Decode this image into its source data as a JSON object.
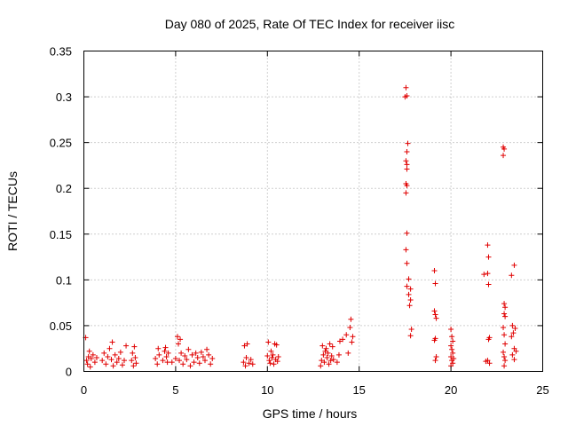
{
  "chart_data": {
    "type": "scatter",
    "title": "Day 080 of 2025, Rate Of TEC Index for receiver iisc",
    "xlabel": "GPS time / hours",
    "ylabel": "ROTI / TECUs",
    "xlim": [
      0,
      25
    ],
    "ylim": [
      0,
      0.35
    ],
    "xticks": [
      0,
      5,
      10,
      15,
      20,
      25
    ],
    "xtick_labels": [
      "0",
      "5",
      "10",
      "15",
      "20",
      "25"
    ],
    "yticks": [
      0,
      0.05,
      0.1,
      0.15,
      0.2,
      0.25,
      0.3,
      0.35
    ],
    "ytick_labels": [
      "0",
      "0.05",
      "0.1",
      "0.15",
      "0.2",
      "0.25",
      "0.3",
      "0.35"
    ],
    "grid": true,
    "marker": "+",
    "color": "#e00000",
    "series": [
      {
        "points": [
          [
            0.1,
            0.037
          ],
          [
            0.15,
            0.012
          ],
          [
            0.2,
            0.008
          ],
          [
            0.25,
            0.016
          ],
          [
            0.3,
            0.022
          ],
          [
            0.35,
            0.005
          ],
          [
            0.4,
            0.014
          ],
          [
            0.5,
            0.018
          ],
          [
            0.6,
            0.01
          ],
          [
            0.7,
            0.015
          ],
          [
            1.0,
            0.012
          ],
          [
            1.1,
            0.02
          ],
          [
            1.2,
            0.008
          ],
          [
            1.3,
            0.016
          ],
          [
            1.4,
            0.025
          ],
          [
            1.5,
            0.013
          ],
          [
            1.55,
            0.032
          ],
          [
            1.6,
            0.006
          ],
          [
            1.7,
            0.018
          ],
          [
            1.8,
            0.01
          ],
          [
            1.9,
            0.014
          ],
          [
            2.0,
            0.021
          ],
          [
            2.1,
            0.007
          ],
          [
            2.2,
            0.012
          ],
          [
            2.3,
            0.028
          ],
          [
            2.6,
            0.012
          ],
          [
            2.65,
            0.02
          ],
          [
            2.7,
            0.006
          ],
          [
            2.75,
            0.027
          ],
          [
            2.8,
            0.015
          ],
          [
            2.85,
            0.009
          ],
          [
            3.9,
            0.014
          ],
          [
            4.0,
            0.008
          ],
          [
            4.05,
            0.025
          ],
          [
            4.1,
            0.018
          ],
          [
            4.3,
            0.012
          ],
          [
            4.4,
            0.022
          ],
          [
            4.45,
            0.026
          ],
          [
            4.5,
            0.016
          ],
          [
            4.55,
            0.01
          ],
          [
            4.6,
            0.02
          ],
          [
            4.8,
            0.01
          ],
          [
            5.0,
            0.014
          ],
          [
            5.1,
            0.038
          ],
          [
            5.15,
            0.03
          ],
          [
            5.2,
            0.012
          ],
          [
            5.25,
            0.035
          ],
          [
            5.3,
            0.02
          ],
          [
            5.4,
            0.008
          ],
          [
            5.5,
            0.017
          ],
          [
            5.6,
            0.013
          ],
          [
            5.7,
            0.024
          ],
          [
            5.8,
            0.006
          ],
          [
            5.9,
            0.018
          ],
          [
            6.0,
            0.01
          ],
          [
            6.1,
            0.02
          ],
          [
            6.2,
            0.015
          ],
          [
            6.3,
            0.009
          ],
          [
            6.4,
            0.021
          ],
          [
            6.5,
            0.016
          ],
          [
            6.6,
            0.012
          ],
          [
            6.7,
            0.024
          ],
          [
            6.8,
            0.018
          ],
          [
            6.9,
            0.008
          ],
          [
            7.0,
            0.014
          ],
          [
            8.7,
            0.01
          ],
          [
            8.75,
            0.028
          ],
          [
            8.8,
            0.006
          ],
          [
            8.85,
            0.015
          ],
          [
            8.9,
            0.03
          ],
          [
            9.0,
            0.009
          ],
          [
            9.1,
            0.013
          ],
          [
            9.2,
            0.008
          ],
          [
            10.0,
            0.017
          ],
          [
            10.05,
            0.032
          ],
          [
            10.1,
            0.012
          ],
          [
            10.15,
            0.009
          ],
          [
            10.2,
            0.022
          ],
          [
            10.25,
            0.015
          ],
          [
            10.3,
            0.018
          ],
          [
            10.35,
            0.008
          ],
          [
            10.4,
            0.03
          ],
          [
            10.45,
            0.013
          ],
          [
            10.5,
            0.029
          ],
          [
            10.55,
            0.011
          ],
          [
            10.6,
            0.016
          ],
          [
            12.9,
            0.006
          ],
          [
            12.95,
            0.012
          ],
          [
            13.0,
            0.028
          ],
          [
            13.05,
            0.018
          ],
          [
            13.1,
            0.01
          ],
          [
            13.15,
            0.022
          ],
          [
            13.2,
            0.025
          ],
          [
            13.25,
            0.015
          ],
          [
            13.3,
            0.02
          ],
          [
            13.35,
            0.008
          ],
          [
            13.4,
            0.03
          ],
          [
            13.45,
            0.012
          ],
          [
            13.5,
            0.017
          ],
          [
            13.55,
            0.027
          ],
          [
            13.6,
            0.013
          ],
          [
            13.8,
            0.01
          ],
          [
            13.9,
            0.018
          ],
          [
            13.95,
            0.033
          ],
          [
            14.1,
            0.035
          ],
          [
            14.3,
            0.04
          ],
          [
            14.4,
            0.02
          ],
          [
            14.5,
            0.048
          ],
          [
            14.55,
            0.057
          ],
          [
            14.6,
            0.032
          ],
          [
            14.65,
            0.038
          ],
          [
            17.5,
            0.3
          ],
          [
            17.55,
            0.31
          ],
          [
            17.6,
            0.301
          ],
          [
            17.65,
            0.249
          ],
          [
            17.6,
            0.24
          ],
          [
            17.55,
            0.23
          ],
          [
            17.6,
            0.226
          ],
          [
            17.6,
            0.221
          ],
          [
            17.55,
            0.205
          ],
          [
            17.6,
            0.203
          ],
          [
            17.55,
            0.195
          ],
          [
            17.6,
            0.151
          ],
          [
            17.55,
            0.133
          ],
          [
            17.6,
            0.118
          ],
          [
            17.7,
            0.101
          ],
          [
            17.6,
            0.093
          ],
          [
            17.8,
            0.09
          ],
          [
            17.7,
            0.084
          ],
          [
            17.8,
            0.078
          ],
          [
            17.75,
            0.072
          ],
          [
            17.85,
            0.046
          ],
          [
            17.8,
            0.039
          ],
          [
            19.1,
            0.11
          ],
          [
            19.15,
            0.096
          ],
          [
            19.1,
            0.066
          ],
          [
            19.15,
            0.062
          ],
          [
            19.2,
            0.058
          ],
          [
            19.15,
            0.036
          ],
          [
            19.1,
            0.034
          ],
          [
            19.2,
            0.016
          ],
          [
            19.15,
            0.012
          ],
          [
            20.0,
            0.046
          ],
          [
            20.05,
            0.038
          ],
          [
            20.1,
            0.033
          ],
          [
            20.0,
            0.028
          ],
          [
            20.05,
            0.024
          ],
          [
            20.1,
            0.02
          ],
          [
            20.0,
            0.016
          ],
          [
            20.05,
            0.012
          ],
          [
            20.1,
            0.009
          ],
          [
            20.0,
            0.006
          ],
          [
            20.15,
            0.014
          ],
          [
            21.8,
            0.106
          ],
          [
            21.9,
            0.011
          ],
          [
            22.0,
            0.138
          ],
          [
            22.05,
            0.125
          ],
          [
            22.0,
            0.107
          ],
          [
            22.05,
            0.095
          ],
          [
            22.1,
            0.037
          ],
          [
            22.05,
            0.035
          ],
          [
            22.0,
            0.012
          ],
          [
            22.1,
            0.009
          ],
          [
            22.85,
            0.245
          ],
          [
            22.9,
            0.243
          ],
          [
            22.85,
            0.236
          ],
          [
            22.9,
            0.074
          ],
          [
            22.95,
            0.07
          ],
          [
            22.9,
            0.063
          ],
          [
            22.95,
            0.06
          ],
          [
            22.85,
            0.048
          ],
          [
            22.9,
            0.04
          ],
          [
            22.95,
            0.03
          ],
          [
            22.85,
            0.021
          ],
          [
            22.9,
            0.016
          ],
          [
            22.95,
            0.012
          ],
          [
            22.9,
            0.006
          ],
          [
            23.3,
            0.105
          ],
          [
            23.45,
            0.116
          ],
          [
            23.35,
            0.05
          ],
          [
            23.5,
            0.047
          ],
          [
            23.4,
            0.042
          ],
          [
            23.3,
            0.038
          ],
          [
            23.45,
            0.025
          ],
          [
            23.55,
            0.022
          ],
          [
            23.35,
            0.018
          ],
          [
            23.45,
            0.013
          ]
        ]
      }
    ]
  }
}
